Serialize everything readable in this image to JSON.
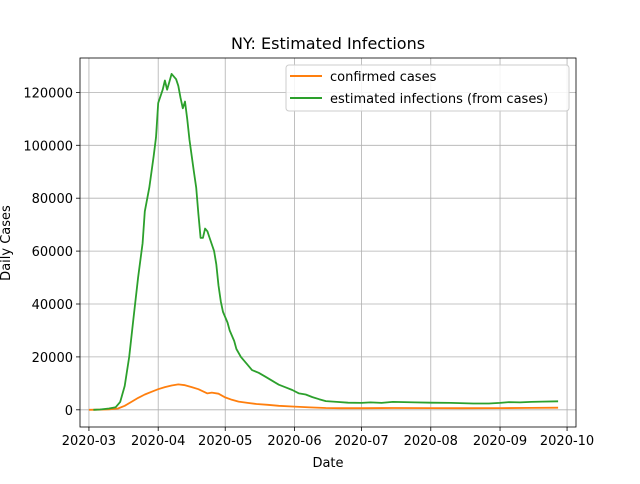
{
  "chart_data": {
    "type": "line",
    "title": "NY: Estimated Infections",
    "xlabel": "Date",
    "ylabel": "Daily Cases",
    "xlim": [
      "2020-02-26",
      "2020-10-05"
    ],
    "ylim": [
      -6500,
      133000
    ],
    "x_ticks": [
      "2020-03",
      "2020-04",
      "2020-05",
      "2020-06",
      "2020-07",
      "2020-08",
      "2020-09",
      "2020-10"
    ],
    "y_ticks": [
      0,
      20000,
      40000,
      60000,
      80000,
      100000,
      120000
    ],
    "y_tick_labels": [
      "0",
      "20000",
      "40000",
      "60000",
      "80000",
      "100000",
      "120000"
    ],
    "grid": true,
    "legend": {
      "placement": "upper right",
      "entries": [
        "confirmed cases",
        "estimated infections (from cases)"
      ]
    },
    "colors": {
      "confirmed": "#ff7f0e",
      "estimated": "#2ca02c"
    },
    "series": [
      {
        "name": "confirmed cases",
        "color": "#ff7f0e",
        "points": [
          [
            "2020-03-01",
            0
          ],
          [
            "2020-03-05",
            50
          ],
          [
            "2020-03-10",
            150
          ],
          [
            "2020-03-14",
            500
          ],
          [
            "2020-03-17",
            1500
          ],
          [
            "2020-03-20",
            3000
          ],
          [
            "2020-03-23",
            4500
          ],
          [
            "2020-03-26",
            5800
          ],
          [
            "2020-03-29",
            6800
          ],
          [
            "2020-04-01",
            7800
          ],
          [
            "2020-04-04",
            8600
          ],
          [
            "2020-04-07",
            9200
          ],
          [
            "2020-04-10",
            9600
          ],
          [
            "2020-04-13",
            9300
          ],
          [
            "2020-04-16",
            8600
          ],
          [
            "2020-04-19",
            7800
          ],
          [
            "2020-04-21",
            7000
          ],
          [
            "2020-04-23",
            6200
          ],
          [
            "2020-04-25",
            6500
          ],
          [
            "2020-04-28",
            6100
          ],
          [
            "2020-05-01",
            4700
          ],
          [
            "2020-05-04",
            3800
          ],
          [
            "2020-05-07",
            3100
          ],
          [
            "2020-05-11",
            2600
          ],
          [
            "2020-05-15",
            2200
          ],
          [
            "2020-05-20",
            1900
          ],
          [
            "2020-05-25",
            1500
          ],
          [
            "2020-06-01",
            1200
          ],
          [
            "2020-06-08",
            900
          ],
          [
            "2020-06-15",
            700
          ],
          [
            "2020-06-22",
            620
          ],
          [
            "2020-07-01",
            600
          ],
          [
            "2020-07-15",
            680
          ],
          [
            "2020-08-01",
            650
          ],
          [
            "2020-08-15",
            620
          ],
          [
            "2020-09-01",
            650
          ],
          [
            "2020-09-15",
            720
          ],
          [
            "2020-09-27",
            780
          ]
        ]
      },
      {
        "name": "estimated infections (from cases)",
        "color": "#2ca02c",
        "points": [
          [
            "2020-03-03",
            0
          ],
          [
            "2020-03-06",
            100
          ],
          [
            "2020-03-10",
            500
          ],
          [
            "2020-03-13",
            1000
          ],
          [
            "2020-03-15",
            3000
          ],
          [
            "2020-03-17",
            9000
          ],
          [
            "2020-03-19",
            20000
          ],
          [
            "2020-03-21",
            35000
          ],
          [
            "2020-03-23",
            50000
          ],
          [
            "2020-03-25",
            63000
          ],
          [
            "2020-03-26",
            75000
          ],
          [
            "2020-03-28",
            84000
          ],
          [
            "2020-03-30",
            96000
          ],
          [
            "2020-03-31",
            103000
          ],
          [
            "2020-04-01",
            116000
          ],
          [
            "2020-04-03",
            121000
          ],
          [
            "2020-04-04",
            124500
          ],
          [
            "2020-04-05",
            121000
          ],
          [
            "2020-04-06",
            124000
          ],
          [
            "2020-04-07",
            127000
          ],
          [
            "2020-04-09",
            125000
          ],
          [
            "2020-04-10",
            122500
          ],
          [
            "2020-04-11",
            118000
          ],
          [
            "2020-04-12",
            114000
          ],
          [
            "2020-04-13",
            116500
          ],
          [
            "2020-04-14",
            110000
          ],
          [
            "2020-04-15",
            102000
          ],
          [
            "2020-04-16",
            96000
          ],
          [
            "2020-04-17",
            90000
          ],
          [
            "2020-04-18",
            84000
          ],
          [
            "2020-04-19",
            74000
          ],
          [
            "2020-04-20",
            65000
          ],
          [
            "2020-04-21",
            65000
          ],
          [
            "2020-04-22",
            68500
          ],
          [
            "2020-04-23",
            67500
          ],
          [
            "2020-04-24",
            65000
          ],
          [
            "2020-04-26",
            60000
          ],
          [
            "2020-04-27",
            55000
          ],
          [
            "2020-04-28",
            47000
          ],
          [
            "2020-04-29",
            41000
          ],
          [
            "2020-04-30",
            37000
          ],
          [
            "2020-05-02",
            33000
          ],
          [
            "2020-05-03",
            30000
          ],
          [
            "2020-05-05",
            26000
          ],
          [
            "2020-05-06",
            23000
          ],
          [
            "2020-05-08",
            20000
          ],
          [
            "2020-05-11",
            17000
          ],
          [
            "2020-05-13",
            15000
          ],
          [
            "2020-05-16",
            14000
          ],
          [
            "2020-05-19",
            12500
          ],
          [
            "2020-05-22",
            11000
          ],
          [
            "2020-05-25",
            9500
          ],
          [
            "2020-05-28",
            8500
          ],
          [
            "2020-05-31",
            7500
          ],
          [
            "2020-06-03",
            6200
          ],
          [
            "2020-06-06",
            5800
          ],
          [
            "2020-06-09",
            4800
          ],
          [
            "2020-06-12",
            4000
          ],
          [
            "2020-06-15",
            3300
          ],
          [
            "2020-06-20",
            3000
          ],
          [
            "2020-06-25",
            2700
          ],
          [
            "2020-07-01",
            2600
          ],
          [
            "2020-07-05",
            2800
          ],
          [
            "2020-07-10",
            2600
          ],
          [
            "2020-07-15",
            3000
          ],
          [
            "2020-07-20",
            2900
          ],
          [
            "2020-07-25",
            2800
          ],
          [
            "2020-08-01",
            2700
          ],
          [
            "2020-08-10",
            2600
          ],
          [
            "2020-08-20",
            2400
          ],
          [
            "2020-08-27",
            2400
          ],
          [
            "2020-09-01",
            2600
          ],
          [
            "2020-09-05",
            2900
          ],
          [
            "2020-09-10",
            2800
          ],
          [
            "2020-09-15",
            3000
          ],
          [
            "2020-09-20",
            3100
          ],
          [
            "2020-09-27",
            3200
          ]
        ]
      }
    ]
  }
}
